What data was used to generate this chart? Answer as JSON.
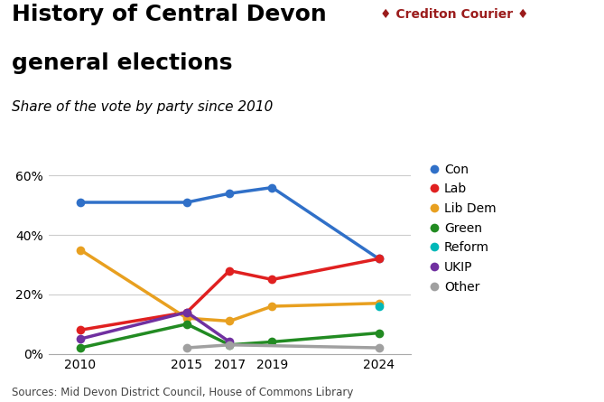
{
  "title_line1": "History of Central Devon",
  "title_line2": "general elections",
  "subtitle": "Share of the vote by party since 2010",
  "source": "Sources: Mid Devon District Council, House of Commons Library",
  "branding": "♦ Crediton Courier ♦",
  "years": [
    2010,
    2015,
    2017,
    2019,
    2024
  ],
  "parties": {
    "Con": {
      "color": "#3070c8",
      "values": [
        0.51,
        0.51,
        0.54,
        0.56,
        0.32
      ]
    },
    "Lab": {
      "color": "#e02020",
      "values": [
        0.08,
        0.14,
        0.28,
        0.25,
        0.32
      ]
    },
    "Lib Dem": {
      "color": "#e8a020",
      "values": [
        0.35,
        0.12,
        0.11,
        0.16,
        0.17
      ]
    },
    "Green": {
      "color": "#228b22",
      "values": [
        0.02,
        0.1,
        0.03,
        0.04,
        0.07
      ]
    },
    "Reform": {
      "color": "#00b8b8",
      "values": [
        null,
        null,
        null,
        null,
        0.16
      ]
    },
    "UKIP": {
      "color": "#7030a0",
      "values": [
        0.05,
        0.14,
        0.04,
        null,
        null
      ]
    },
    "Other": {
      "color": "#a0a0a0",
      "values": [
        null,
        0.02,
        0.03,
        null,
        0.02
      ]
    }
  },
  "ylim": [
    0.0,
    0.65
  ],
  "yticks": [
    0.0,
    0.2,
    0.4,
    0.6
  ],
  "yticklabels": [
    "0%",
    "20%",
    "40%",
    "60%"
  ],
  "background_color": "#ffffff",
  "grid_color": "#cccccc",
  "title_fontsize": 18,
  "subtitle_fontsize": 11,
  "source_fontsize": 8.5,
  "legend_fontsize": 10,
  "tick_fontsize": 10,
  "marker_size": 7,
  "line_width": 2.5
}
